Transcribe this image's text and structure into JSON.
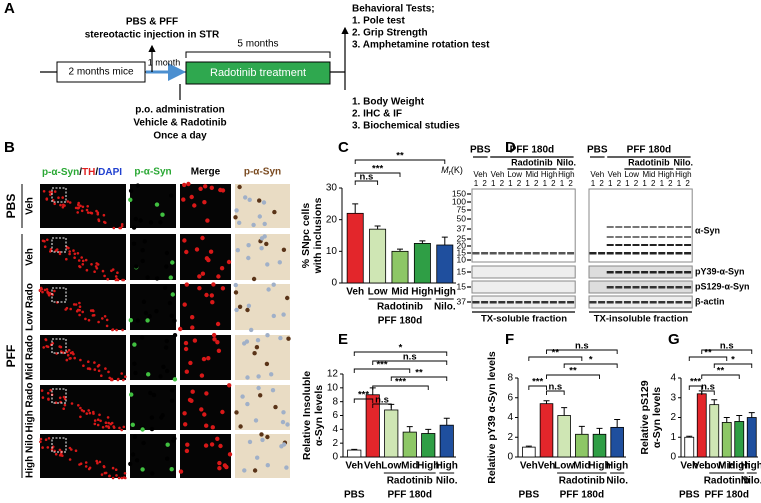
{
  "panel_labels": [
    "A",
    "B",
    "C",
    "D",
    "E",
    "F",
    "G"
  ],
  "panel_a": {
    "injection": [
      "PBS & PFF",
      "stereotactic injection in STR"
    ],
    "start": "2 months mice",
    "interval": "1 month",
    "duration": "5 months",
    "treatment": "Radotinib treatment",
    "administration": [
      "p.o. administration",
      "Vehicle & Radotinib",
      "Once a day"
    ],
    "behavioral_title": "Behavioral Tests;",
    "behavioral_tests": [
      "1.  Pole test",
      "2.  Grip Strength",
      "3.  Amphetamine rotation test"
    ],
    "endpoints": [
      "1.  Body Weight",
      "2.  IHC & IF",
      "3.  Biochemical studies"
    ]
  },
  "panel_b": {
    "column_1_parts": [
      "p-α-Syn",
      "/",
      "TH",
      "/",
      "DAPI"
    ],
    "columns": [
      "p-α-Syn",
      "Merge",
      "p-α-Syn"
    ],
    "groups": [
      "PBS",
      "PFF"
    ],
    "rows": [
      "Veh",
      "Veh",
      "Low Rado",
      "Mid Rado",
      "High Rado",
      "High Nilo"
    ]
  },
  "panel_d": {
    "top_groups": [
      "PBS",
      "PFF 180d"
    ],
    "sub_groups": [
      "Radotinib",
      "Nilo."
    ],
    "lane_groups": [
      "Veh",
      "Veh",
      "Low",
      "Mid",
      "High",
      "High"
    ],
    "lanes": [
      "1",
      "2"
    ],
    "mr": [
      "M",
      "r",
      "(K)"
    ],
    "markers": [
      "150",
      "100",
      "75",
      "50",
      "37",
      "25",
      "20",
      "15",
      "10"
    ],
    "small_markers": [
      "15",
      "15",
      "37"
    ],
    "bands": [
      "α-Syn",
      "pY39-α-Syn",
      "pS129-α-Syn",
      "β-actin"
    ],
    "fractions": [
      "TX-soluble fraction",
      "TX-insoluble fraction"
    ]
  },
  "chart_data": [
    {
      "type": "bar",
      "y_label": [
        "% SNpc cells",
        "with inclusions"
      ],
      "categories": [
        "Veh",
        "Low",
        "Mid",
        "High",
        "High"
      ],
      "values": [
        22,
        17,
        10,
        12.5,
        12
      ],
      "errors": [
        3,
        1,
        0.7,
        0.8,
        2.5
      ],
      "colors": [
        "#e3262b",
        "#cfe6b4",
        "#8dc766",
        "#2f9e45",
        "#1f4f9e"
      ],
      "ylim": [
        0,
        30
      ],
      "yticks": [
        0,
        10,
        20,
        30
      ],
      "groups": [
        "Radotinib",
        "Nilo.",
        "PFF 180d"
      ],
      "annotations": [
        "**",
        "***",
        "n.s"
      ]
    },
    {
      "type": "bar",
      "y_label": [
        "Relative Insoluble",
        "α-Syn levels"
      ],
      "categories": [
        "Veh",
        "Veh",
        "Low",
        "Mid",
        "High",
        "High"
      ],
      "values": [
        1,
        9,
        6.8,
        3.6,
        3.4,
        4.6
      ],
      "errors": [
        0.1,
        1,
        0.8,
        0.8,
        0.6,
        1
      ],
      "colors": [
        "#ffffff",
        "#e3262b",
        "#cfe6b4",
        "#8dc766",
        "#2f9e45",
        "#1f4f9e"
      ],
      "ylim": [
        0,
        12
      ],
      "yticks": [
        0,
        2,
        4,
        6,
        8,
        10,
        12
      ],
      "groups": [
        "PBS",
        "Radotinib",
        "Nilo.",
        "PFF 180d"
      ],
      "annotations": [
        "*",
        "n.s",
        "***",
        "**",
        "***",
        "***",
        "n.s"
      ]
    },
    {
      "type": "bar",
      "y_label": [
        "Relative pY39 α-Syn levels"
      ],
      "categories": [
        "Veh",
        "Veh",
        "Low",
        "Mid",
        "High",
        "High"
      ],
      "values": [
        1,
        5.4,
        4.2,
        2.3,
        2.3,
        3
      ],
      "errors": [
        0.1,
        0.3,
        0.8,
        0.8,
        0.6,
        0.8
      ],
      "colors": [
        "#ffffff",
        "#e3262b",
        "#cfe6b4",
        "#8dc766",
        "#2f9e45",
        "#1f4f9e"
      ],
      "ylim": [
        0,
        8
      ],
      "yticks": [
        0,
        2,
        4,
        6,
        8
      ],
      "groups": [
        "PBS",
        "Radotinib",
        "Nilo.",
        "PFF 180d"
      ],
      "annotations": [
        "n.s",
        "**",
        "*",
        "**",
        "***",
        "n.s"
      ]
    },
    {
      "type": "bar",
      "y_label": [
        "Relative pS129",
        "α-Syn levels"
      ],
      "categories": [
        "Veh",
        "Veh",
        "Low",
        "Mid",
        "High",
        "High"
      ],
      "values": [
        1,
        3.2,
        2.65,
        1.75,
        1.8,
        2
      ],
      "errors": [
        0.05,
        0.15,
        0.25,
        0.25,
        0.3,
        0.25
      ],
      "colors": [
        "#ffffff",
        "#e3262b",
        "#cfe6b4",
        "#8dc766",
        "#2f9e45",
        "#1f4f9e"
      ],
      "ylim": [
        0,
        4
      ],
      "yticks": [
        0,
        1,
        2,
        3,
        4
      ],
      "groups": [
        "PBS",
        "Radotinib",
        "Nilo.",
        "PFF 180d"
      ],
      "annotations": [
        "n.s",
        "**",
        "*",
        "**",
        "***",
        "n.s"
      ]
    }
  ]
}
